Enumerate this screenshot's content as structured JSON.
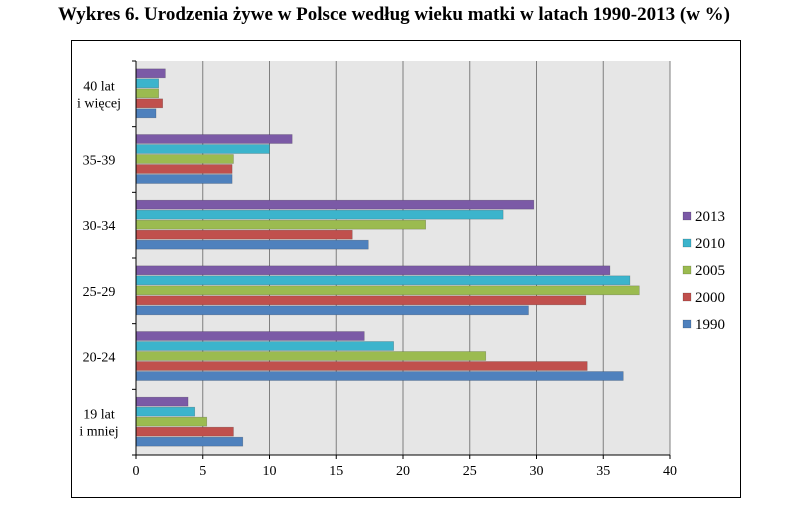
{
  "title": "Wykres 6. Urodzenia żywe w Polsce według wieku matki w latach 1990-2013 (w %)",
  "colors": {
    "2013": "#7b5aa6",
    "2010": "#3cb4cc",
    "2005": "#9bbb50",
    "2000": "#c0504d",
    "1990": "#4f81bd",
    "plot_bg": "#e6e6e6",
    "grid": "#7f7f7f"
  },
  "chart_data": {
    "type": "bar",
    "orientation": "horizontal",
    "categories": [
      "40 lat i więcej",
      "35-39",
      "30-34",
      "25-29",
      "20-24",
      "19 lat i mniej"
    ],
    "category_lines": [
      [
        "40 lat",
        "i więcej"
      ],
      [
        "35-39"
      ],
      [
        "30-34"
      ],
      [
        "25-29"
      ],
      [
        "20-24"
      ],
      [
        "19 lat",
        "i mniej"
      ]
    ],
    "series": [
      {
        "name": "2013",
        "values": [
          2.2,
          11.7,
          29.8,
          35.5,
          17.1,
          3.9
        ]
      },
      {
        "name": "2010",
        "values": [
          1.7,
          10.0,
          27.5,
          37.0,
          19.3,
          4.4
        ]
      },
      {
        "name": "2005",
        "values": [
          1.7,
          7.3,
          21.7,
          37.7,
          26.2,
          5.3
        ]
      },
      {
        "name": "2000",
        "values": [
          2.0,
          7.2,
          16.2,
          33.7,
          33.8,
          7.3
        ]
      },
      {
        "name": "1990",
        "values": [
          1.5,
          7.2,
          17.4,
          29.4,
          36.5,
          8.0
        ]
      }
    ],
    "xlim": [
      0,
      40
    ],
    "xticks": [
      0,
      5,
      10,
      15,
      20,
      25,
      30,
      35,
      40
    ],
    "grid": true,
    "legend": "right"
  }
}
